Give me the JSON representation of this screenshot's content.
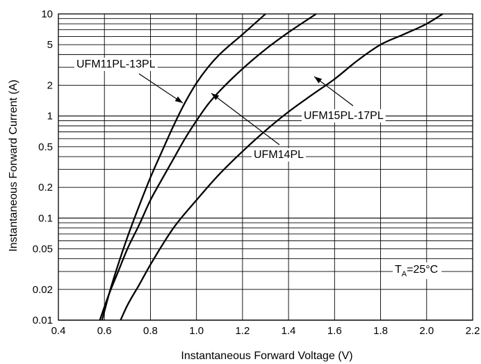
{
  "chart_data": {
    "type": "line",
    "xlabel": "Instantaneous Forward Voltage (V)",
    "ylabel": "Instantaneous Forward Current (A)",
    "x_scale": "linear",
    "y_scale": "log",
    "xlim": [
      0.4,
      2.2
    ],
    "ylim": [
      0.01,
      10
    ],
    "x_ticks": [
      0.4,
      0.6,
      0.8,
      1.0,
      1.2,
      1.4,
      1.6,
      1.8,
      2.0,
      2.2
    ],
    "x_tick_labels": [
      "0.4",
      "0.6",
      "0.8",
      "1.0",
      "1.2",
      "1.4",
      "1.6",
      "1.8",
      "2.0",
      "2.2"
    ],
    "y_ticks": [
      0.01,
      0.02,
      0.05,
      0.1,
      0.2,
      0.5,
      1,
      2,
      5,
      10
    ],
    "y_tick_labels": [
      "0.01",
      "0.02",
      "0.05",
      "0.1",
      "0.2",
      "0.5",
      "1",
      "2",
      "5",
      "10"
    ],
    "grid": true,
    "series": [
      {
        "name": "UFM11PL-13PL",
        "x": [
          0.59,
          0.62,
          0.65,
          0.7,
          0.75,
          0.8,
          0.85,
          0.9,
          0.95,
          1.0,
          1.05,
          1.1,
          1.2,
          1.3
        ],
        "y": [
          0.01,
          0.018,
          0.03,
          0.065,
          0.13,
          0.25,
          0.45,
          0.8,
          1.35,
          2.1,
          3.0,
          4.0,
          6.3,
          10
        ]
      },
      {
        "name": "UFM14PL",
        "x": [
          0.58,
          0.62,
          0.66,
          0.7,
          0.75,
          0.8,
          0.85,
          0.9,
          0.95,
          1.0,
          1.05,
          1.1,
          1.2,
          1.3,
          1.4,
          1.52
        ],
        "y": [
          0.01,
          0.018,
          0.03,
          0.05,
          0.085,
          0.15,
          0.24,
          0.38,
          0.6,
          0.9,
          1.3,
          1.75,
          2.9,
          4.5,
          6.6,
          10
        ]
      },
      {
        "name": "UFM15PL-17PL",
        "x": [
          0.67,
          0.7,
          0.75,
          0.8,
          0.9,
          1.0,
          1.1,
          1.2,
          1.3,
          1.4,
          1.5,
          1.6,
          1.7,
          1.8,
          1.9,
          2.0,
          2.07
        ],
        "y": [
          0.01,
          0.014,
          0.022,
          0.035,
          0.08,
          0.15,
          0.27,
          0.45,
          0.72,
          1.1,
          1.6,
          2.3,
          3.5,
          5.0,
          6.3,
          8.0,
          10
        ]
      }
    ],
    "annotations": [
      {
        "text": "UFM11PL-13PL",
        "target_series": "UFM11PL-13PL"
      },
      {
        "text": "UFM14PL",
        "target_series": "UFM14PL"
      },
      {
        "text": "UFM15PL-17PL",
        "target_series": "UFM15PL-17PL"
      }
    ],
    "condition_label": {
      "base": "T",
      "sub": "A",
      "rest": "=25°C"
    }
  }
}
